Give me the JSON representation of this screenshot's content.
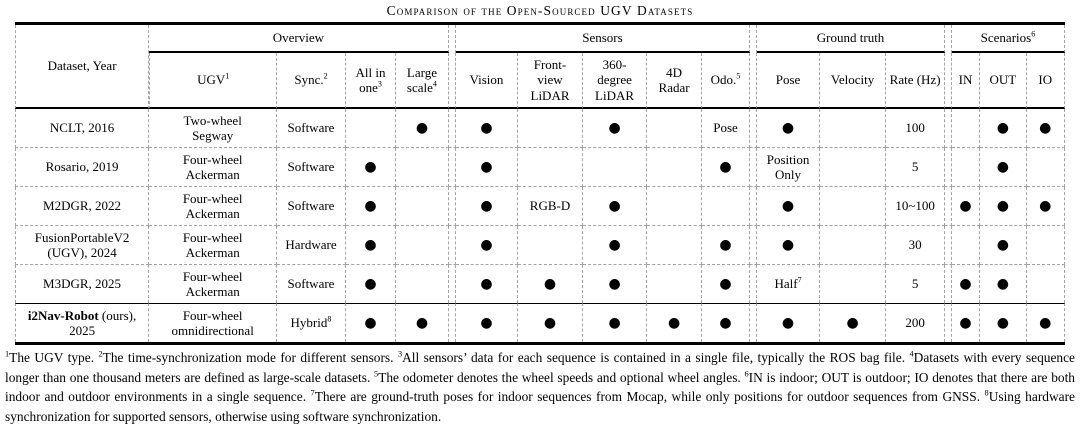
{
  "caption": "Comparison of the Open-Sourced UGV Datasets",
  "table": {
    "dot": "●",
    "groups": [
      {
        "id": "overview",
        "label": "Overview"
      },
      {
        "id": "sensors",
        "label": "Sensors"
      },
      {
        "id": "groundtruth",
        "label": "Ground truth"
      },
      {
        "id": "scenarios",
        "label": "Scenarios^6"
      }
    ],
    "columns": [
      {
        "id": "dataset",
        "label": "Dataset, Year",
        "group": null
      },
      {
        "id": "ugv",
        "label": "UGV^1",
        "group": "overview"
      },
      {
        "id": "sync",
        "label": "Sync.^2",
        "group": "overview"
      },
      {
        "id": "allinone",
        "label": "All in one^3",
        "group": "overview"
      },
      {
        "id": "largescale",
        "label": "Large scale^4",
        "group": "overview"
      },
      {
        "id": "vision",
        "label": "Vision",
        "group": "sensors"
      },
      {
        "id": "frontlidar",
        "label": "Front-view LiDAR",
        "group": "sensors"
      },
      {
        "id": "lidar360",
        "label": "360-degree LiDAR",
        "group": "sensors"
      },
      {
        "id": "radar4d",
        "label": "4D Radar",
        "group": "sensors"
      },
      {
        "id": "odo",
        "label": "Odo.^5",
        "group": "sensors"
      },
      {
        "id": "pose",
        "label": "Pose",
        "group": "groundtruth"
      },
      {
        "id": "velocity",
        "label": "Velocity",
        "group": "groundtruth"
      },
      {
        "id": "rate",
        "label": "Rate (Hz)",
        "group": "groundtruth"
      },
      {
        "id": "in",
        "label": "IN",
        "group": "scenarios"
      },
      {
        "id": "out",
        "label": "OUT",
        "group": "scenarios"
      },
      {
        "id": "io",
        "label": "IO",
        "group": "scenarios"
      }
    ],
    "rows": [
      {
        "dataset": "NCLT, 2016",
        "cells": {
          "ugv": "Two-wheel Segway",
          "sync": "Software",
          "allinone": "",
          "largescale": "●",
          "vision": "●",
          "frontlidar": "",
          "lidar360": "●",
          "radar4d": "",
          "odo": "Pose",
          "pose": "●",
          "velocity": "",
          "rate": "100",
          "in": "",
          "out": "●",
          "io": "●"
        }
      },
      {
        "dataset": "Rosario, 2019",
        "cells": {
          "ugv": "Four-wheel Ackerman",
          "sync": "Software",
          "allinone": "●",
          "largescale": "",
          "vision": "●",
          "frontlidar": "",
          "lidar360": "",
          "radar4d": "",
          "odo": "●",
          "pose": "Position Only",
          "velocity": "",
          "rate": "5",
          "in": "",
          "out": "●",
          "io": ""
        }
      },
      {
        "dataset": "M2DGR, 2022",
        "cells": {
          "ugv": "Four-wheel Ackerman",
          "sync": "Software",
          "allinone": "●",
          "largescale": "",
          "vision": "●",
          "frontlidar": "RGB-D",
          "lidar360": "●",
          "radar4d": "",
          "odo": "",
          "pose": "●",
          "velocity": "",
          "rate": "10~100",
          "in": "●",
          "out": "●",
          "io": "●"
        }
      },
      {
        "dataset": "FusionPortableV2 (UGV), 2024",
        "cells": {
          "ugv": "Four-wheel Ackerman",
          "sync": "Hardware",
          "allinone": "●",
          "largescale": "",
          "vision": "●",
          "frontlidar": "",
          "lidar360": "●",
          "radar4d": "",
          "odo": "●",
          "pose": "●",
          "velocity": "",
          "rate": "30",
          "in": "",
          "out": "●",
          "io": ""
        }
      },
      {
        "dataset": "M3DGR, 2025",
        "cells": {
          "ugv": "Four-wheel Ackerman",
          "sync": "Software",
          "allinone": "●",
          "largescale": "",
          "vision": "●",
          "frontlidar": "●",
          "lidar360": "●",
          "radar4d": "",
          "odo": "●",
          "pose": "Half^7",
          "velocity": "",
          "rate": "5",
          "in": "●",
          "out": "●",
          "io": ""
        }
      },
      {
        "dataset_bold": "i2Nav-Robot",
        "dataset": " (ours), 2025",
        "cells": {
          "ugv": "Four-wheel omnidirectional",
          "sync": "Hybrid^8",
          "allinone": "●",
          "largescale": "●",
          "vision": "●",
          "frontlidar": "●",
          "lidar360": "●",
          "radar4d": "●",
          "odo": "●",
          "pose": "●",
          "velocity": "●",
          "rate": "200",
          "in": "●",
          "out": "●",
          "io": "●"
        }
      }
    ]
  },
  "footnote": "^1The UGV type. ^2The time-synchronization mode for different sensors. ^3All sensors’ data for each sequence is contained in a single file, typically the ROS bag file. ^4Datasets with every sequence longer than one thousand meters are defined as large-scale datasets. ^5The odometer denotes the wheel speeds and optional wheel angles. ^6IN is indoor; OUT is outdoor; IO denotes that there are both indoor and outdoor environments in a single sequence. ^7There are ground-truth poses for indoor sequences from Mocap, while only positions for outdoor sequences from GNSS. ^8Using hardware synchronization for supported sensors, otherwise using software synchronization."
}
